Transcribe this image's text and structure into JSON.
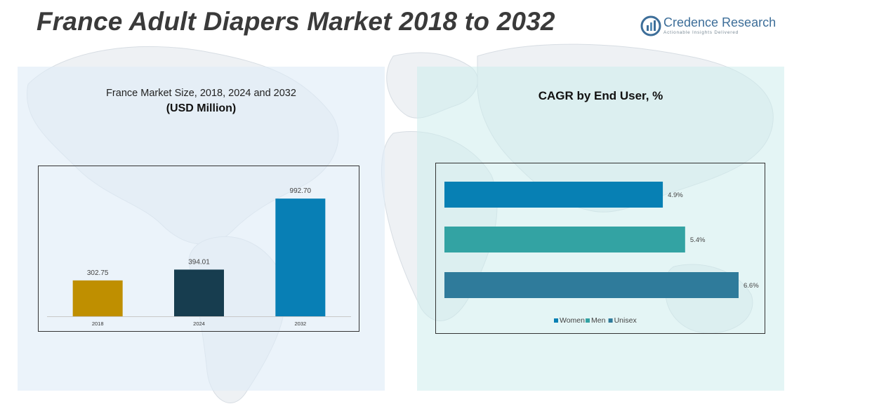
{
  "header": {
    "title": "France Adult Diapers Market 2018 to 2032",
    "logo_name": "Credence Research",
    "logo_tagline": "Actionable Insights Delivered"
  },
  "left_panel": {
    "title_line1": "France Market Size, 2018, 2024 and 2032",
    "title_line2": "(USD Million)"
  },
  "right_panel": {
    "title": "CAGR by End User, %"
  },
  "chart_data": [
    {
      "type": "bar",
      "title": "France Market Size, 2018, 2024 and 2032",
      "subtitle": "(USD Million)",
      "categories": [
        "2018",
        "2024",
        "2032"
      ],
      "values": [
        302.75,
        394.01,
        992.7
      ],
      "value_labels": [
        "302.75",
        "394.01",
        "992.70"
      ],
      "colors": [
        "#bf8f00",
        "#173d4f",
        "#087fb5"
      ],
      "ylim": [
        0,
        1100
      ],
      "grid": false
    },
    {
      "type": "bar",
      "orientation": "horizontal",
      "title": "CAGR by End User, %",
      "categories": [
        "Women",
        "Men",
        "Unisex"
      ],
      "series": [
        {
          "name": "Women",
          "value": 4.9,
          "label": "4.9%",
          "color": "#0780b4"
        },
        {
          "name": "Men",
          "value": 5.4,
          "label": "5.4%",
          "color": "#33a3a3"
        },
        {
          "name": "Unisex",
          "value": 6.6,
          "label": "6.6%",
          "color": "#2f7b9b"
        }
      ],
      "xlim": [
        0,
        6.6
      ],
      "grid": false,
      "legend_position": "bottom"
    }
  ]
}
